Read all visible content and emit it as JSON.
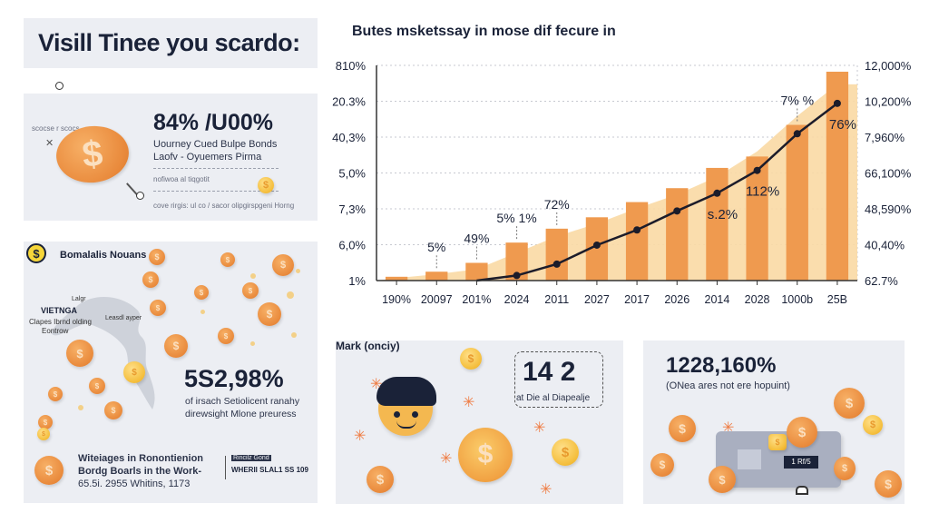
{
  "header": {
    "title": "Visill Tinee you scardo:"
  },
  "panel_top": {
    "headline": "84% /U00%",
    "line1": "Uourney Cued Bulpe Bonds",
    "line2": "Laofv - Oyuemers Pirma",
    "note1": "nofiwoa al tiqgotit",
    "note2": "cove rirgis: ul co / sacor olipgirspgeni Horng",
    "small_label": "scocse r scocs"
  },
  "panel_map": {
    "title": "Bomalalis Nouans",
    "badge_icon": "$",
    "map_small": "Lalgr",
    "map_country": "VIETNGA",
    "map_caption1": "Clapes Ibrnd olding",
    "map_caption2": "Eontrow",
    "map_side": "Leasdl ayper",
    "stat": "5S2,98%",
    "stat_line1": "of irsach Setiolicent ranahy",
    "stat_line2": "direwsight Mlone preuress",
    "footer_line1": "Witeiages in Ronontienion",
    "footer_line2": "Bordg Boarls in the Work-",
    "footer_line3": "65.5i. 2955 Whitins, 1173",
    "footer_tag": "Rincilz Gond",
    "footer_meta": "WHERII SLAL1 SS 109"
  },
  "panel_mark": {
    "title": "Mark (onciy)",
    "figure": "14 2",
    "caption": "at Die al Diapealje"
  },
  "panel_wallet": {
    "stat": "1228,160%",
    "caption": "(ONea ares not ere hopuint)",
    "screen": "1 Rf/5"
  },
  "chart_data": {
    "type": "bar",
    "title": "Butes msketssay in mose dif fecure in",
    "categories": [
      "190%",
      "20097",
      "201%",
      "2024",
      "2011",
      "2027",
      "2017",
      "2026",
      "2014",
      "2028",
      "1000b",
      "25B"
    ],
    "series": [
      {
        "name": "bars",
        "kind": "bar",
        "values": [
          3,
          7,
          14,
          30,
          41,
          50,
          62,
          73,
          89,
          98,
          123,
          165
        ]
      },
      {
        "name": "line",
        "kind": "line",
        "values": [
          null,
          null,
          -8,
          4,
          13,
          28,
          40,
          55,
          69,
          87,
          116,
          140
        ]
      },
      {
        "name": "area",
        "kind": "area",
        "values": [
          2,
          5,
          9,
          22,
          35,
          45,
          57,
          68,
          82,
          102,
          130,
          155
        ]
      }
    ],
    "bar_labels": [
      "",
      "5%",
      "49%",
      "5% 1%",
      "72%",
      "",
      "",
      "",
      "",
      "",
      "7% %",
      ""
    ],
    "inline_labels": [
      {
        "index": 8,
        "text": "s.2%"
      },
      {
        "index": 9,
        "text": "112%"
      },
      {
        "index": 11,
        "text": "76%"
      }
    ],
    "yticks_left": [
      "810%",
      "20.3%",
      "40,3%",
      "5,0%",
      "7,3%",
      "6,0%",
      "1%"
    ],
    "yticks_right": [
      "12,000%",
      "10,200%",
      "7,960%",
      "66,100%",
      "48,590%",
      "40,40%",
      "62.7%"
    ],
    "ylim": [
      0,
      170
    ],
    "grid": true,
    "colors": {
      "bar": "#ef9a4f",
      "area": "#fad9a4",
      "line": "#1c1c2a"
    }
  }
}
